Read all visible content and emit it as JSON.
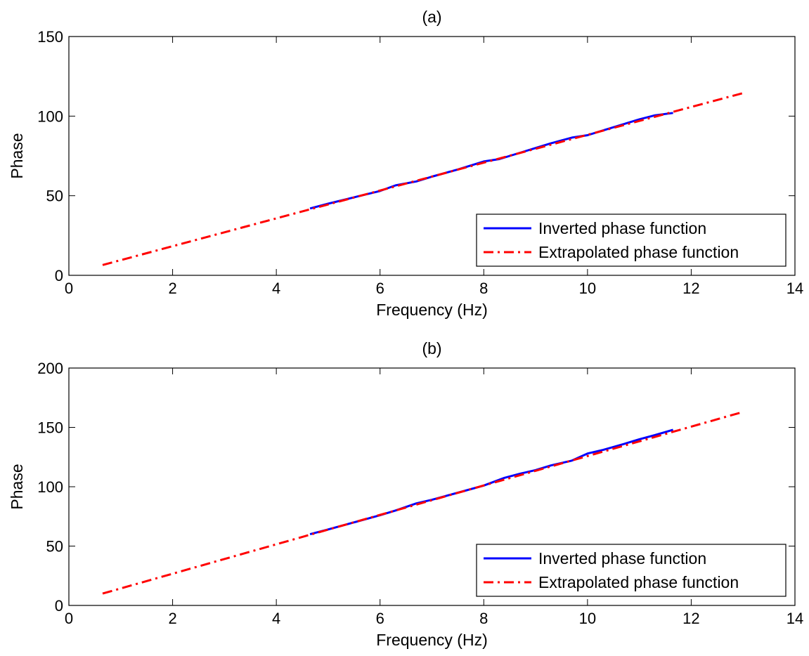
{
  "chart_data": [
    {
      "type": "line",
      "title": "(a)",
      "xlabel": "Frequency (Hz)",
      "ylabel": "Phase",
      "xlim": [
        0,
        14
      ],
      "ylim": [
        0,
        150
      ],
      "xticks": [
        0,
        2,
        4,
        6,
        8,
        10,
        12,
        14
      ],
      "yticks": [
        0,
        50,
        100,
        150
      ],
      "grid": false,
      "legend": "bottom-right",
      "series": [
        {
          "name": "Inverted phase function",
          "color": "#0000ff",
          "style": "solid",
          "x": [
            4.65,
            5.0,
            5.5,
            6.0,
            6.3,
            6.7,
            7.0,
            7.5,
            8.0,
            8.3,
            8.7,
            9.0,
            9.3,
            9.7,
            10.0,
            10.3,
            10.7,
            11.0,
            11.3,
            11.65
          ],
          "y": [
            42,
            45,
            49,
            53,
            56.5,
            59,
            62,
            66.5,
            71.5,
            73,
            77,
            80,
            83,
            86.5,
            88,
            91,
            95,
            98,
            100.5,
            102
          ]
        },
        {
          "name": "Extrapolated phase function",
          "color": "#ff0000",
          "style": "dashdot",
          "x": [
            0.65,
            13.0
          ],
          "y": [
            6.5,
            114.5
          ]
        }
      ]
    },
    {
      "type": "line",
      "title": "(b)",
      "xlabel": "Frequency (Hz)",
      "ylabel": "Phase",
      "xlim": [
        0,
        14
      ],
      "ylim": [
        0,
        200
      ],
      "xticks": [
        0,
        2,
        4,
        6,
        8,
        10,
        12,
        14
      ],
      "yticks": [
        0,
        50,
        100,
        150,
        200
      ],
      "grid": false,
      "legend": "bottom-right",
      "series": [
        {
          "name": "Inverted phase function",
          "color": "#0000ff",
          "style": "solid",
          "x": [
            4.65,
            5.0,
            5.5,
            6.0,
            6.3,
            6.7,
            7.0,
            7.5,
            8.0,
            8.4,
            8.7,
            9.0,
            9.3,
            9.7,
            10.0,
            10.3,
            10.7,
            11.0,
            11.3,
            11.65
          ],
          "y": [
            60,
            64,
            70,
            76,
            80,
            86,
            89,
            95,
            101,
            107.5,
            111,
            114,
            118,
            122,
            128,
            131,
            136,
            140,
            143.5,
            148
          ]
        },
        {
          "name": "Extrapolated phase function",
          "color": "#ff0000",
          "style": "dashdot",
          "x": [
            0.65,
            13.0
          ],
          "y": [
            10,
            163
          ]
        }
      ]
    }
  ]
}
